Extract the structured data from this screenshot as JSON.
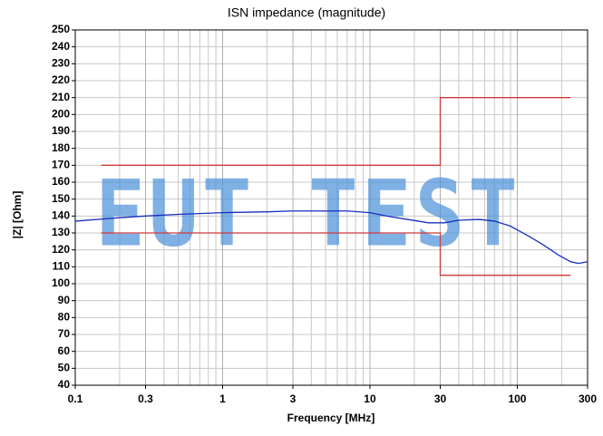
{
  "chart_data": {
    "type": "line",
    "title": "ISN impedance (magnitude)",
    "x_label": "Frequency [MHz]",
    "y_label": "|Z| [Ohm]",
    "watermark": "EUT TEST",
    "x_log": true,
    "xlim": [
      0.1,
      300
    ],
    "xticks": [
      0.1,
      0.3,
      1,
      3,
      10,
      30,
      100,
      300
    ],
    "x_minor_ticks": [
      0.2,
      0.4,
      0.5,
      0.6,
      0.7,
      0.8,
      0.9,
      2,
      4,
      5,
      6,
      7,
      8,
      9,
      20,
      40,
      50,
      60,
      70,
      80,
      90,
      200
    ],
    "ylim": [
      40,
      250
    ],
    "yticks": [
      40,
      50,
      60,
      70,
      80,
      90,
      100,
      110,
      120,
      130,
      140,
      150,
      160,
      170,
      180,
      190,
      200,
      210,
      220,
      230,
      240,
      250
    ],
    "grid": true,
    "series": [
      {
        "color": "#d03a3a",
        "x": [
          0.15,
          30,
          30,
          230
        ],
        "values": [
          170,
          170,
          210,
          210
        ]
      },
      {
        "color": "#d03a3a",
        "x": [
          0.15,
          30,
          30,
          230
        ],
        "values": [
          130,
          130,
          105,
          105
        ]
      },
      {
        "color": "#1a2ec0",
        "x": [
          0.1,
          0.2,
          0.3,
          0.5,
          1,
          2,
          3,
          5,
          7,
          10,
          13,
          18,
          25,
          32,
          40,
          55,
          70,
          90,
          120,
          150,
          190,
          230,
          260,
          300
        ],
        "values": [
          137,
          139,
          140,
          141,
          142,
          142.5,
          143,
          143,
          143,
          142,
          140,
          138,
          136,
          136,
          137.5,
          138,
          137,
          134,
          128,
          123,
          117,
          113,
          112,
          113
        ]
      }
    ]
  }
}
